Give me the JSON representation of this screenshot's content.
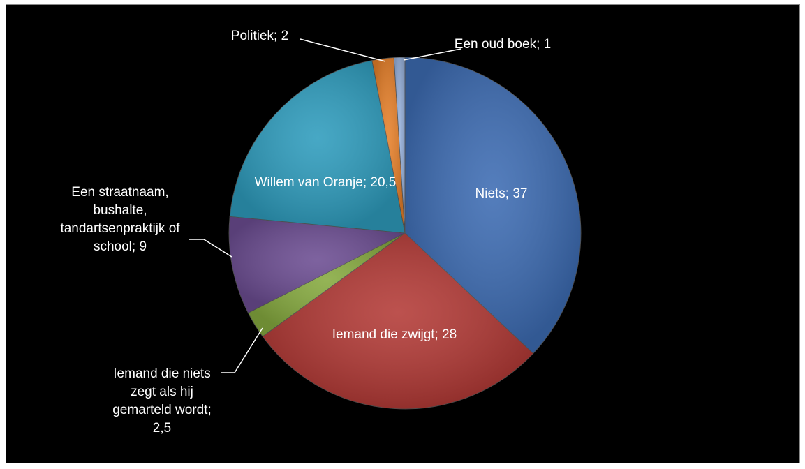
{
  "chart_data": {
    "type": "pie",
    "categories": [
      "Niets;",
      "Iemand die zwijgt;",
      "Iemand die niets zegt als hij gemarteld wordt;",
      "Een straatnaam, bushalte, tandartsenpraktijk of school;",
      "Willem van Oranje;",
      "Politiek;",
      "Een oud boek;"
    ],
    "values": [
      37,
      28,
      2.5,
      9,
      20.5,
      2,
      1
    ],
    "value_labels": [
      "37",
      "28",
      "2,5",
      "9",
      "20,5",
      "2",
      "1"
    ],
    "colors": [
      "#3d6cb3",
      "#b33a36",
      "#86aa3f",
      "#6c4d92",
      "#2e9cbd",
      "#e6802a",
      "#98b2dc"
    ]
  }
}
